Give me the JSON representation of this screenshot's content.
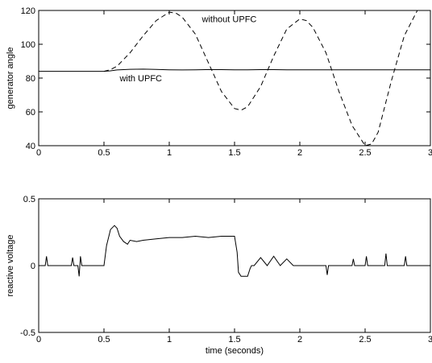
{
  "chart_data": [
    {
      "type": "line",
      "title": "",
      "xlabel": "",
      "ylabel": "generator angle",
      "xlim": [
        0,
        3
      ],
      "ylim": [
        40,
        120
      ],
      "xticks": [
        0,
        0.5,
        1,
        1.5,
        2,
        2.5,
        3
      ],
      "xtick_labels": [
        "0",
        "0.5",
        "1",
        "1.5",
        "2",
        "2.5",
        "3"
      ],
      "yticks": [
        40,
        60,
        80,
        100,
        120
      ],
      "ytick_labels": [
        "40",
        "60",
        "80",
        "100",
        "120"
      ],
      "grid": false,
      "annotations": [
        {
          "text": "without UPFC",
          "x": 1.25,
          "y": 113
        },
        {
          "text": "with UPFC",
          "x": 0.62,
          "y": 78
        }
      ],
      "series": [
        {
          "style": "solid",
          "x": [
            0,
            0.5,
            0.55,
            0.6,
            0.7,
            0.8,
            0.9,
            1.0,
            1.1,
            1.2,
            1.3,
            1.4,
            1.5,
            1.6,
            1.7,
            1.8,
            1.9,
            2.0,
            2.2,
            2.5,
            2.8,
            3.0
          ],
          "y": [
            84,
            84,
            84.3,
            84.8,
            85.2,
            85.3,
            85.1,
            84.9,
            84.8,
            84.9,
            85.0,
            85.0,
            84.9,
            84.9,
            85.0,
            85.0,
            84.9,
            84.9,
            84.9,
            84.9,
            84.9,
            84.9
          ]
        },
        {
          "style": "dashed",
          "x": [
            0.5,
            0.55,
            0.6,
            0.7,
            0.8,
            0.9,
            1.0,
            1.05,
            1.1,
            1.2,
            1.3,
            1.4,
            1.5,
            1.55,
            1.6,
            1.7,
            1.8,
            1.9,
            2.0,
            2.05,
            2.1,
            2.2,
            2.3,
            2.4,
            2.5,
            2.55,
            2.6,
            2.7,
            2.8,
            2.9
          ],
          "y": [
            84,
            85,
            87,
            95,
            105,
            114,
            119,
            118.5,
            116,
            106,
            89,
            72,
            62,
            61,
            63,
            75,
            93,
            109,
            115,
            114,
            110,
            95,
            72,
            52,
            40,
            41,
            48,
            78,
            105,
            120
          ]
        }
      ]
    },
    {
      "type": "line",
      "title": "",
      "xlabel": "time (seconds)",
      "ylabel": "reactive voltage",
      "xlim": [
        0,
        3
      ],
      "ylim": [
        -0.5,
        0.5
      ],
      "xticks": [
        0,
        0.5,
        1,
        1.5,
        2,
        2.5,
        3
      ],
      "xtick_labels": [
        "0",
        "0.5",
        "1",
        "1.5",
        "2",
        "2.5",
        "3"
      ],
      "yticks": [
        -0.5,
        0,
        0.5
      ],
      "ytick_labels": [
        "-0.5",
        "0",
        "0.5"
      ],
      "grid": false,
      "annotations": [],
      "series": [
        {
          "style": "solid",
          "x": [
            0,
            0.05,
            0.06,
            0.07,
            0.25,
            0.26,
            0.27,
            0.3,
            0.31,
            0.32,
            0.33,
            0.34,
            0.5,
            0.52,
            0.55,
            0.58,
            0.6,
            0.62,
            0.65,
            0.68,
            0.7,
            0.75,
            0.8,
            0.9,
            1.0,
            1.1,
            1.2,
            1.3,
            1.4,
            1.5,
            1.52,
            1.53,
            1.55,
            1.58,
            1.6,
            1.62,
            1.63,
            1.65,
            1.7,
            1.75,
            1.8,
            1.85,
            1.9,
            1.95,
            2.0,
            2.2,
            2.21,
            2.22,
            2.4,
            2.41,
            2.42,
            2.5,
            2.51,
            2.52,
            2.6,
            2.65,
            2.66,
            2.67,
            2.8,
            2.81,
            2.82,
            3.0
          ],
          "y": [
            0,
            0,
            0.07,
            0,
            0,
            0.06,
            0,
            0,
            -0.08,
            0.07,
            0,
            0,
            0,
            0.15,
            0.27,
            0.3,
            0.28,
            0.22,
            0.18,
            0.16,
            0.19,
            0.18,
            0.19,
            0.2,
            0.21,
            0.21,
            0.22,
            0.21,
            0.22,
            0.22,
            0.1,
            -0.05,
            -0.08,
            -0.08,
            -0.08,
            -0.02,
            0,
            0,
            0.06,
            0,
            0.07,
            0,
            0.05,
            0,
            0,
            0,
            -0.07,
            0,
            0,
            0.05,
            0,
            0,
            0.07,
            0,
            0,
            0,
            0.09,
            0,
            0,
            0.07,
            0,
            0
          ]
        }
      ]
    }
  ]
}
